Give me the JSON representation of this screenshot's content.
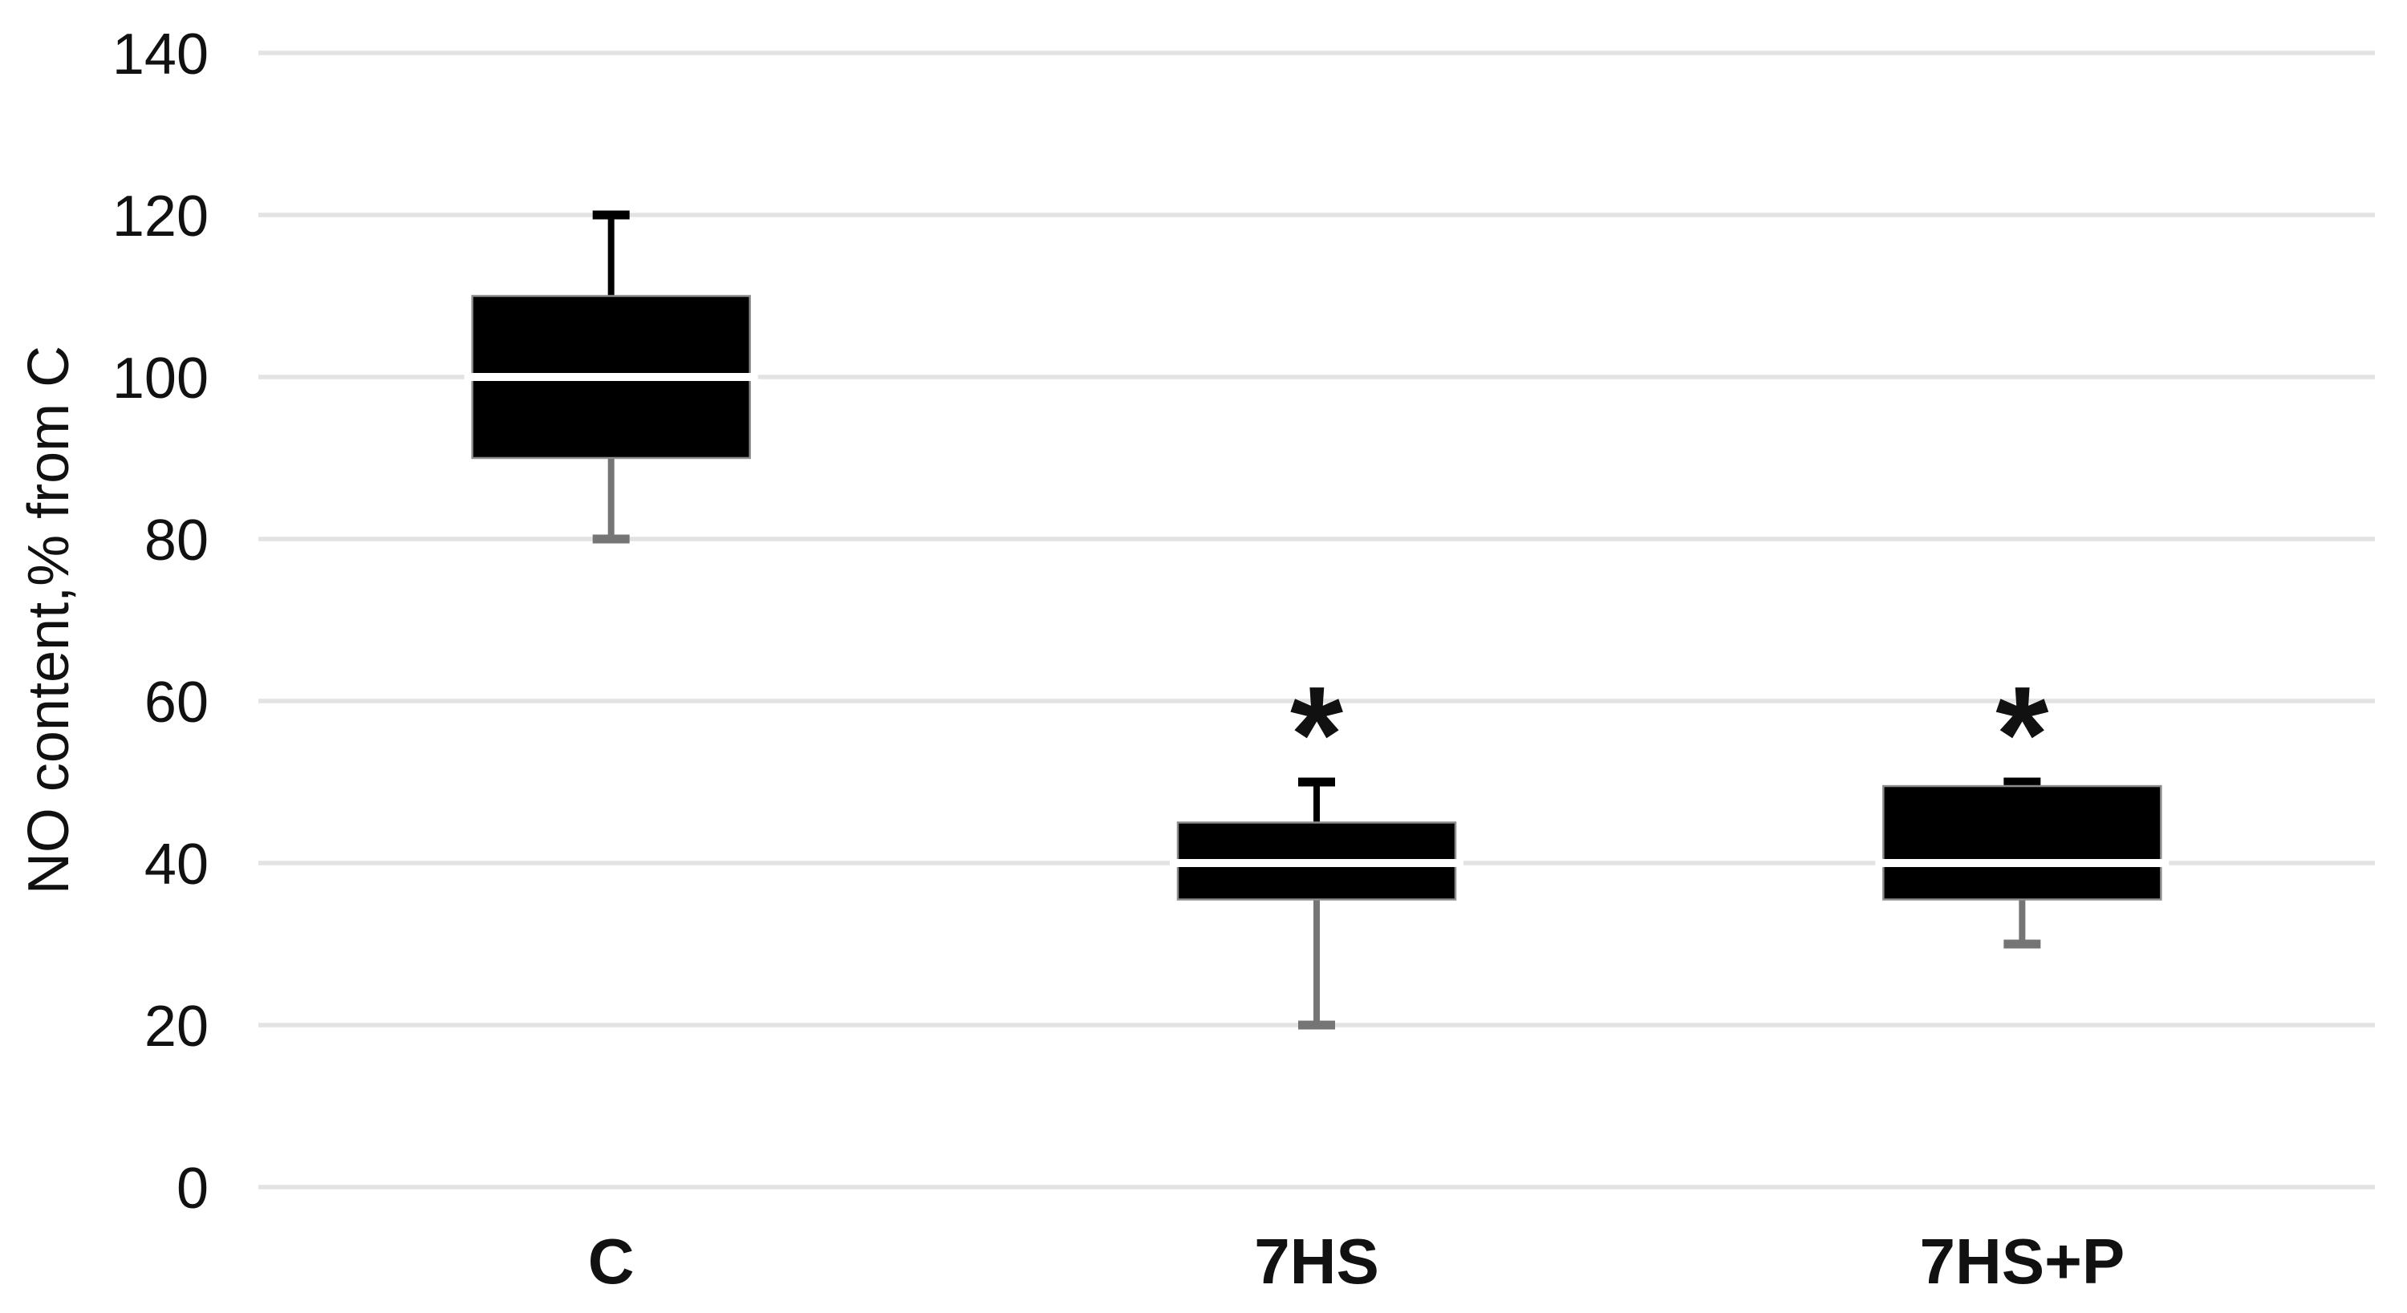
{
  "chart_data": {
    "type": "box",
    "title": "",
    "xlabel": "",
    "ylabel": "NO content,% from C",
    "categories": [
      "C",
      "7HS",
      "7HS+P"
    ],
    "y_axis": {
      "min": 0,
      "max": 140,
      "step": 20,
      "tick_labels": [
        "0",
        "20",
        "40",
        "60",
        "80",
        "100",
        "120",
        "140"
      ]
    },
    "grid": true,
    "legend": "none",
    "annotation_y": 58.5,
    "series": [
      {
        "category": "C",
        "min": 80,
        "q1": 90,
        "median": 100,
        "q3": 110,
        "max": 120,
        "annotation": ""
      },
      {
        "category": "7HS",
        "min": 20,
        "q1": 35.5,
        "median": 40,
        "q3": 45,
        "max": 50,
        "annotation": "*"
      },
      {
        "category": "7HS+P",
        "min": 30,
        "q1": 35.5,
        "median": 40,
        "q3": 49.5,
        "max": 50,
        "annotation": "*"
      }
    ]
  },
  "colors": {
    "background": "#ffffff",
    "box_fill": "#000000",
    "box_border": "#8c8c8c",
    "median_line": "#ffffff",
    "whisker_upper": "#000000",
    "whisker_lower": "#757575",
    "gridline": "#e3e3e3",
    "text": "#111111"
  }
}
